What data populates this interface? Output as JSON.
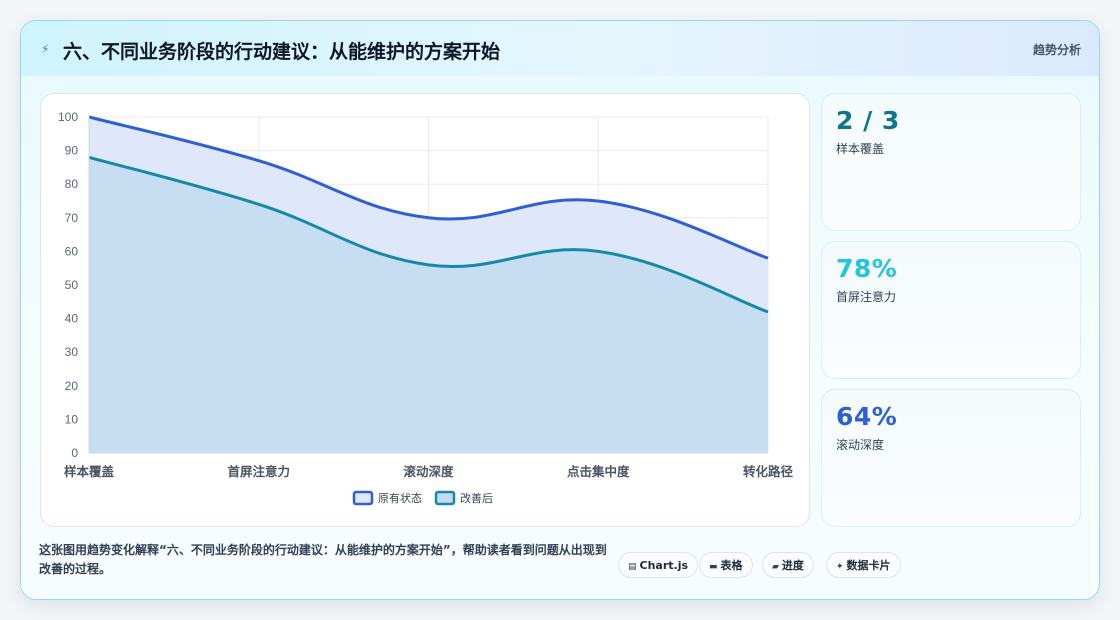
{
  "header": {
    "icon": "lightning-icon",
    "title": "六、不同业务阶段的行动建议：从能维护的方案开始",
    "tag": "趋势分析"
  },
  "chart_data": {
    "type": "area",
    "categories": [
      "样本覆盖",
      "首屏注意力",
      "滚动深度",
      "点击集中度",
      "转化路径"
    ],
    "series": [
      {
        "name": "原有状态",
        "values": [
          100,
          87,
          70,
          75,
          58
        ],
        "color": "#2f5fd6",
        "fill": "#dfe8fb"
      },
      {
        "name": "改善后",
        "values": [
          88,
          74,
          56,
          60,
          42
        ],
        "color": "#1589aa",
        "fill": "#c4dcf1"
      }
    ],
    "ylim": [
      0,
      100
    ],
    "yticks": [
      0,
      10,
      20,
      30,
      40,
      50,
      60,
      70,
      80,
      90,
      100
    ],
    "legend_position": "bottom",
    "grid": true
  },
  "stats": [
    {
      "value": "2 / 3",
      "label": "样本覆盖",
      "color": "#0e7490"
    },
    {
      "value": "78%",
      "label": "首屏注意力",
      "color": "#22c5dd"
    },
    {
      "value": "64%",
      "label": "滚动深度",
      "color": "#2d5fd8"
    }
  ],
  "caption": "这张图用趋势变化解释“六、不同业务阶段的行动建议：从能维护的方案开始”，帮助读者看到问题从出现到改善的过程。",
  "pills": [
    {
      "icon": "▤",
      "label": "Chart.js"
    },
    {
      "icon": "▬",
      "label": "表格"
    },
    {
      "icon": "▰",
      "label": "进度"
    },
    {
      "icon": "✦",
      "label": "数据卡片"
    }
  ]
}
